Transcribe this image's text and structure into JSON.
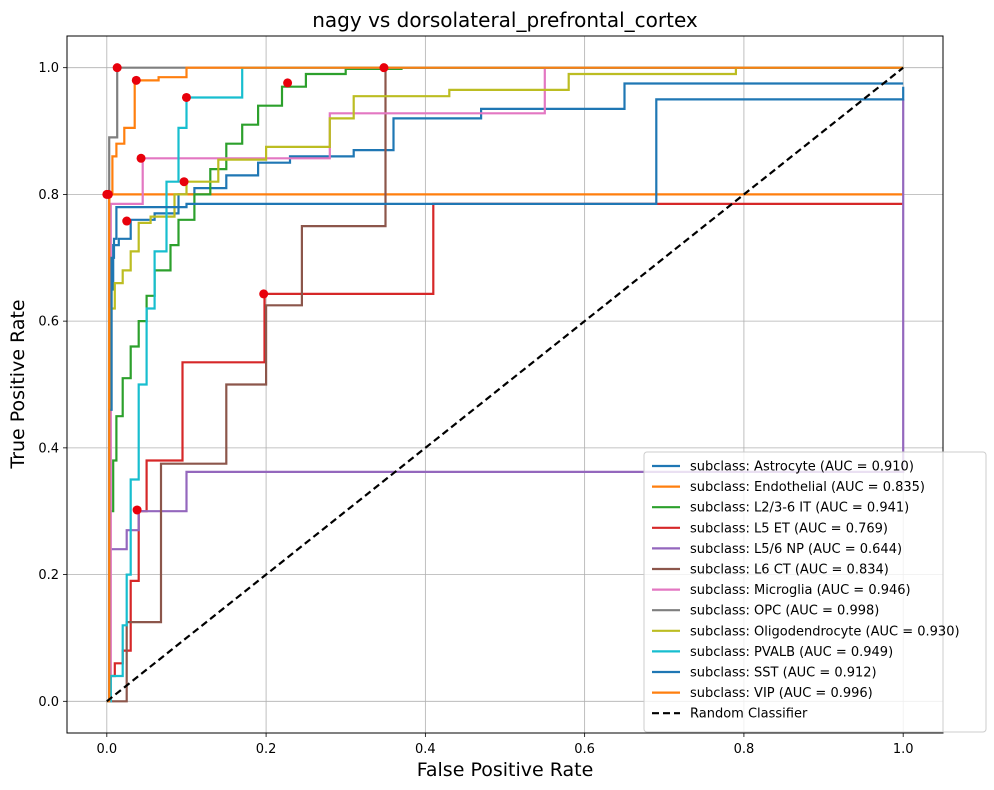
{
  "chart_data": {
    "type": "line",
    "title": "nagy vs dorsolateral_prefrontal_cortex",
    "xlabel": "False Positive Rate",
    "ylabel": "True Positive Rate",
    "xlim": [
      -0.05,
      1.05
    ],
    "ylim": [
      -0.05,
      1.05
    ],
    "xticks": [
      "0.0",
      "0.2",
      "0.4",
      "0.6",
      "0.8",
      "1.0"
    ],
    "yticks": [
      "0.0",
      "0.2",
      "0.4",
      "0.6",
      "0.8",
      "1.0"
    ],
    "grid": true,
    "legend_position": "lower-right",
    "series": [
      {
        "name": "subclass: Astrocyte (AUC = 0.910)",
        "color": "#1f77b4",
        "x": [
          0,
          0.003,
          0.003,
          0.008,
          0.008,
          0.015,
          0.015,
          0.03,
          0.03,
          0.06,
          0.06,
          0.09,
          0.09,
          0.11,
          0.11,
          0.15,
          0.15,
          0.19,
          0.19,
          0.23,
          0.23,
          0.31,
          0.31,
          0.36,
          0.36,
          0.47,
          0.47,
          0.65,
          0.65,
          1.0
        ],
        "y": [
          0,
          0,
          0.65,
          0.65,
          0.72,
          0.72,
          0.73,
          0.73,
          0.76,
          0.76,
          0.77,
          0.77,
          0.8,
          0.8,
          0.81,
          0.81,
          0.83,
          0.83,
          0.85,
          0.85,
          0.86,
          0.86,
          0.87,
          0.87,
          0.92,
          0.92,
          0.935,
          0.935,
          0.975,
          0.975
        ],
        "opt": [
          0.025,
          0.758
        ]
      },
      {
        "name": "subclass: Endothelial (AUC = 0.835)",
        "color": "#ff7f0e",
        "x": [
          0,
          0.003,
          0.003,
          1.0
        ],
        "y": [
          0,
          0,
          0.8,
          0.8
        ],
        "opt": [
          0.002,
          0.8
        ]
      },
      {
        "name": "subclass: L2/3-6 IT (AUC = 0.941)",
        "color": "#2ca02c",
        "x": [
          0,
          0.003,
          0.003,
          0.008,
          0.008,
          0.012,
          0.012,
          0.02,
          0.02,
          0.03,
          0.03,
          0.04,
          0.04,
          0.05,
          0.05,
          0.06,
          0.06,
          0.08,
          0.08,
          0.09,
          0.09,
          0.11,
          0.11,
          0.13,
          0.13,
          0.15,
          0.15,
          0.17,
          0.17,
          0.19,
          0.19,
          0.22,
          0.22,
          0.25,
          0.25,
          0.3,
          0.3,
          0.37,
          0.37,
          1.0
        ],
        "y": [
          0,
          0,
          0.3,
          0.3,
          0.38,
          0.38,
          0.45,
          0.45,
          0.51,
          0.51,
          0.56,
          0.56,
          0.6,
          0.6,
          0.64,
          0.64,
          0.68,
          0.68,
          0.72,
          0.72,
          0.76,
          0.76,
          0.8,
          0.8,
          0.84,
          0.84,
          0.88,
          0.88,
          0.91,
          0.91,
          0.94,
          0.94,
          0.97,
          0.97,
          0.99,
          0.99,
          0.998,
          0.998,
          1.0,
          1.0
        ],
        "opt": [
          0.227,
          0.976
        ]
      },
      {
        "name": "subclass: L5 ET (AUC = 0.769)",
        "color": "#d62728",
        "x": [
          0,
          0.005,
          0.005,
          0.01,
          0.01,
          0.02,
          0.02,
          0.03,
          0.03,
          0.04,
          0.04,
          0.05,
          0.05,
          0.06,
          0.06,
          0.095,
          0.095,
          0.198,
          0.198,
          0.41,
          0.41,
          1.0
        ],
        "y": [
          0,
          0,
          0.04,
          0.04,
          0.06,
          0.06,
          0.08,
          0.08,
          0.19,
          0.19,
          0.3,
          0.3,
          0.38,
          0.38,
          0.38,
          0.38,
          0.535,
          0.535,
          0.643,
          0.643,
          0.785,
          0.785
        ],
        "opt": [
          0.197,
          0.643
        ]
      },
      {
        "name": "subclass: L5/6 NP (AUC = 0.644)",
        "color": "#9467bd",
        "x": [
          0,
          0.003,
          0.003,
          0.025,
          0.025,
          0.04,
          0.04,
          0.1,
          0.1,
          1.0,
          1.0
        ],
        "y": [
          0,
          0,
          0.24,
          0.24,
          0.27,
          0.27,
          0.3,
          0.3,
          0.362,
          0.362,
          0.95
        ],
        "opt": [
          0.038,
          0.302
        ]
      },
      {
        "name": "subclass: L6 CT (AUC = 0.834)",
        "color": "#8c564b",
        "x": [
          0,
          0.025,
          0.025,
          0.068,
          0.068,
          0.15,
          0.15,
          0.2,
          0.2,
          0.245,
          0.245,
          0.35,
          0.35,
          1.0
        ],
        "y": [
          0,
          0,
          0.125,
          0.125,
          0.375,
          0.375,
          0.5,
          0.5,
          0.625,
          0.625,
          0.75,
          0.75,
          1.0,
          1.0
        ],
        "opt": [
          0.348,
          1.0
        ]
      },
      {
        "name": "subclass: Microglia (AUC = 0.946)",
        "color": "#e377c2",
        "x": [
          0,
          0.005,
          0.005,
          0.045,
          0.045,
          0.28,
          0.28,
          0.55,
          0.55,
          1.0
        ],
        "y": [
          0,
          0,
          0.785,
          0.785,
          0.857,
          0.857,
          0.928,
          0.928,
          1.0,
          1.0
        ],
        "opt": [
          0.043,
          0.857
        ]
      },
      {
        "name": "subclass: OPC (AUC = 0.998)",
        "color": "#7f7f7f",
        "x": [
          0,
          0.003,
          0.003,
          0.013,
          0.013,
          0.1,
          0.1,
          1.0
        ],
        "y": [
          0,
          0,
          0.89,
          0.89,
          1.0,
          1.0,
          1.0,
          1.0
        ],
        "opt": [
          0.013,
          1.0
        ]
      },
      {
        "name": "subclass: Oligodendrocyte (AUC = 0.930)",
        "color": "#bcbd22",
        "x": [
          0,
          0.003,
          0.003,
          0.01,
          0.01,
          0.02,
          0.02,
          0.03,
          0.03,
          0.04,
          0.04,
          0.055,
          0.055,
          0.085,
          0.085,
          0.1,
          0.1,
          0.14,
          0.14,
          0.2,
          0.2,
          0.28,
          0.28,
          0.31,
          0.31,
          0.43,
          0.43,
          0.58,
          0.58,
          0.79,
          0.79,
          1.0
        ],
        "y": [
          0,
          0,
          0.62,
          0.62,
          0.66,
          0.66,
          0.68,
          0.68,
          0.71,
          0.71,
          0.755,
          0.755,
          0.765,
          0.765,
          0.8,
          0.8,
          0.82,
          0.82,
          0.855,
          0.855,
          0.875,
          0.875,
          0.92,
          0.92,
          0.955,
          0.955,
          0.965,
          0.965,
          0.99,
          0.99,
          1.0,
          1.0
        ],
        "opt": [
          0.097,
          0.82
        ]
      },
      {
        "name": "subclass: PVALB (AUC = 0.949)",
        "color": "#17becf",
        "x": [
          0,
          0.005,
          0.005,
          0.02,
          0.02,
          0.025,
          0.025,
          0.03,
          0.03,
          0.04,
          0.04,
          0.05,
          0.05,
          0.06,
          0.06,
          0.075,
          0.075,
          0.09,
          0.09,
          0.1,
          0.1,
          0.17,
          0.17,
          1.0
        ],
        "y": [
          0,
          0,
          0.04,
          0.04,
          0.12,
          0.12,
          0.2,
          0.2,
          0.35,
          0.35,
          0.5,
          0.5,
          0.62,
          0.62,
          0.71,
          0.71,
          0.82,
          0.82,
          0.905,
          0.905,
          0.953,
          0.953,
          1.0,
          1.0
        ],
        "opt": [
          0.1,
          0.953
        ]
      },
      {
        "name": "subclass: SST (AUC = 0.912)",
        "color": "#1f77b4",
        "x": [
          0,
          0.003,
          0.003,
          0.006,
          0.006,
          0.009,
          0.009,
          0.012,
          0.012,
          0.1,
          0.1,
          0.69,
          0.69,
          1.0,
          1.0
        ],
        "y": [
          0,
          0,
          0.46,
          0.46,
          0.7,
          0.7,
          0.73,
          0.73,
          0.78,
          0.78,
          0.785,
          0.785,
          0.95,
          0.95,
          0.97
        ],
        "opt": [
          0.0,
          0.8
        ]
      },
      {
        "name": "subclass: VIP (AUC = 0.996)",
        "color": "#ff7f0e",
        "x": [
          0,
          0.003,
          0.003,
          0.007,
          0.007,
          0.012,
          0.012,
          0.022,
          0.022,
          0.035,
          0.035,
          0.065,
          0.065,
          0.1,
          0.1,
          1.0
        ],
        "y": [
          0,
          0,
          0.8,
          0.8,
          0.86,
          0.86,
          0.88,
          0.88,
          0.905,
          0.905,
          0.98,
          0.98,
          0.985,
          0.985,
          1.0,
          1.0
        ],
        "opt": [
          0.037,
          0.98
        ]
      },
      {
        "name": "Random Classifier",
        "color": "#000000",
        "dashed": true,
        "x": [
          0,
          1.0
        ],
        "y": [
          0,
          1.0
        ]
      }
    ]
  }
}
